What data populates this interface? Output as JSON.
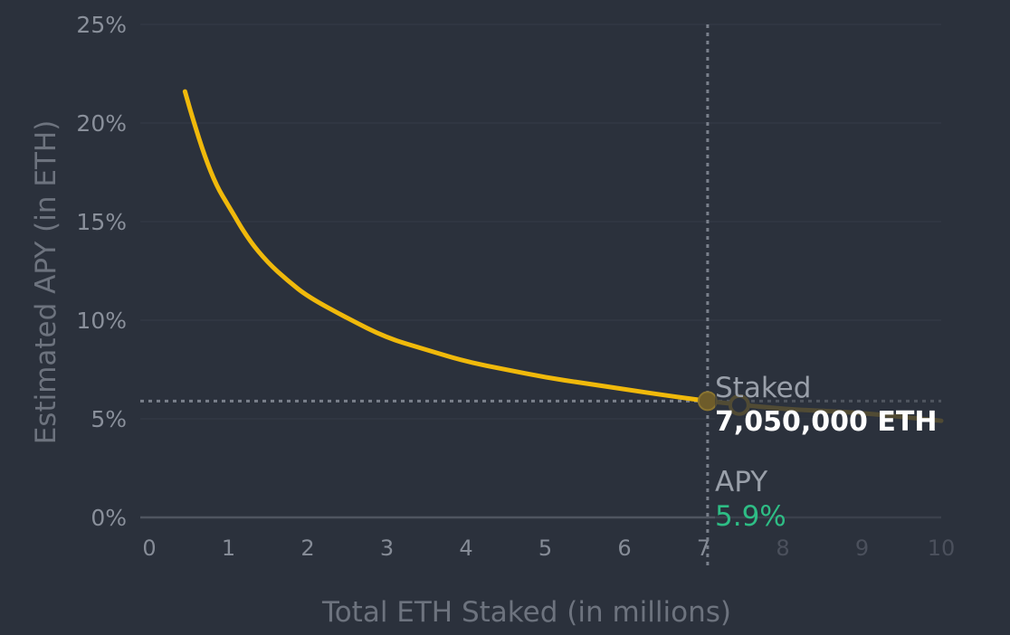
{
  "chart_data": {
    "type": "line",
    "title": "",
    "xlabel": "Total ETH Staked (in millions)",
    "ylabel": "Estimated APY (in ETH)",
    "xlim": [
      0,
      10
    ],
    "ylim": [
      0,
      25
    ],
    "x_ticks": [
      "0",
      "1",
      "2",
      "3",
      "4",
      "5",
      "6",
      "7",
      "8",
      "9",
      "10"
    ],
    "y_ticks": [
      "0%",
      "5%",
      "10%",
      "15%",
      "20%",
      "25%"
    ],
    "grid": true,
    "series": [
      {
        "name": "Estimated APY",
        "x": [
          0.45,
          0.55,
          0.7,
          0.85,
          1.0,
          1.25,
          1.5,
          1.75,
          2.0,
          2.5,
          3.0,
          3.5,
          4.0,
          4.5,
          5.0,
          5.5,
          6.0,
          6.5,
          7.05,
          7.5,
          8.0,
          8.5,
          9.0,
          9.5,
          10.0
        ],
        "y": [
          21.6,
          20.2,
          18.3,
          16.8,
          15.8,
          14.1,
          12.9,
          12.0,
          11.2,
          10.1,
          9.1,
          8.5,
          7.9,
          7.5,
          7.1,
          6.8,
          6.5,
          6.2,
          5.9,
          5.7,
          5.5,
          5.4,
          5.3,
          5.1,
          4.9
        ]
      }
    ],
    "highlight": {
      "x": 7.05,
      "y": 5.9,
      "hover_x": 7.45,
      "hover_y": 5.7
    },
    "tooltip": {
      "staked_label": "Staked",
      "staked_value": "7,050,000 ETH",
      "apy_label": "APY",
      "apy_value": "5.9%"
    },
    "colors": {
      "line": "#f0b90b",
      "line_faded": "#7f6a2a",
      "grid": "#323844",
      "axis": "#4f5560",
      "crosshair": "#7a808b",
      "apy_value": "#2ebd85"
    }
  }
}
